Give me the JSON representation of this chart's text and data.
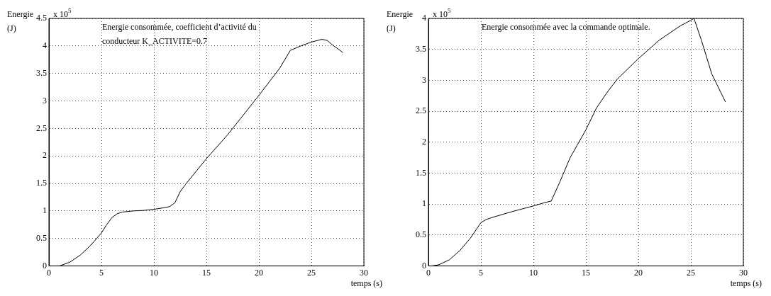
{
  "chart_data": [
    {
      "type": "line",
      "title": "Energie consommée, coefficient d’activité du conducteur K_ACTIVITE=0.7",
      "xlabel": "temps (s)",
      "ylabel": "Energie (J)",
      "annotations": [
        "x 10$^{5}$"
      ],
      "color": "#000000",
      "grid": true,
      "line_style": "solid",
      "marker": "none",
      "x": [
        1,
        2,
        3,
        4,
        5,
        5.5,
        6,
        6.5,
        7,
        8,
        9,
        10,
        11,
        11.5,
        12,
        12.5,
        13,
        15,
        17,
        20,
        22,
        23,
        24,
        25,
        26,
        26.5,
        27,
        28
      ],
      "values": [
        0,
        0.07,
        0.2,
        0.38,
        0.6,
        0.75,
        0.88,
        0.95,
        0.98,
        1.0,
        1.01,
        1.03,
        1.06,
        1.08,
        1.15,
        1.35,
        1.48,
        1.95,
        2.38,
        3.1,
        3.6,
        3.92,
        4.0,
        4.07,
        4.12,
        4.1,
        4.02,
        3.88
      ],
      "xlim": [
        0,
        30
      ],
      "ylim": [
        0,
        4.5
      ],
      "xticks": [
        0,
        5,
        10,
        15,
        20,
        25,
        30
      ],
      "yticks": [
        0,
        0.5,
        1,
        1.5,
        2,
        2.5,
        3,
        3.5,
        4,
        4.5
      ]
    },
    {
      "type": "line",
      "title": "Energie consommée avec la commande optimale.",
      "xlabel": "temps (s)",
      "ylabel": "Energie (J)",
      "annotations": [
        "x 10$^{5}$"
      ],
      "color": "#000000",
      "grid": true,
      "line_style": "solid",
      "marker": "none",
      "x": [
        0.3,
        1,
        2,
        3,
        4,
        5,
        5.5,
        6,
        8,
        10,
        11,
        11.7,
        12.5,
        13.5,
        15,
        16,
        17,
        18,
        20,
        22,
        24,
        25,
        25.3,
        26,
        27,
        28.3
      ],
      "values": [
        0,
        0.02,
        0.1,
        0.25,
        0.45,
        0.7,
        0.75,
        0.78,
        0.88,
        0.97,
        1.02,
        1.05,
        1.35,
        1.75,
        2.2,
        2.55,
        2.8,
        3.02,
        3.35,
        3.65,
        3.88,
        3.97,
        4.0,
        3.65,
        3.1,
        2.65
      ],
      "xlim": [
        0,
        30
      ],
      "ylim": [
        0,
        4
      ],
      "xticks": [
        0,
        5,
        10,
        15,
        20,
        25,
        30
      ],
      "yticks": [
        0,
        0.5,
        1,
        1.5,
        2,
        2.5,
        3,
        3.5,
        4
      ]
    }
  ]
}
